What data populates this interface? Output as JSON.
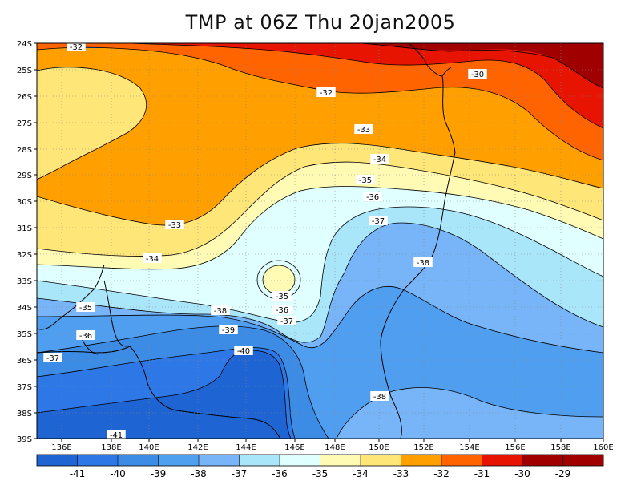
{
  "title": "TMP at 06Z Thu 20jan2005",
  "map": {
    "lon_labels": [
      "136E",
      "138E",
      "140E",
      "142E",
      "144E",
      "146E",
      "148E",
      "150E",
      "152E",
      "154E",
      "156E",
      "158E",
      "160E"
    ],
    "lat_labels": [
      "24S",
      "25S",
      "26S",
      "27S",
      "28S",
      "29S",
      "30S",
      "31S",
      "32S",
      "33S",
      "34S",
      "35S",
      "36S",
      "37S",
      "38S",
      "39S"
    ],
    "contour_labels": [
      "-32",
      "-30",
      "-32",
      "-33",
      "-34",
      "-35",
      "-36",
      "-37",
      "-38",
      "-33",
      "-34",
      "-35",
      "-36",
      "-37",
      "-35",
      "-36",
      "-37",
      "-38",
      "-39",
      "-40",
      "-38",
      "-41"
    ]
  },
  "colorbar": {
    "labels": [
      "-41",
      "-40",
      "-39",
      "-38",
      "-37",
      "-36",
      "-35",
      "-34",
      "-33",
      "-32",
      "-31",
      "-30",
      "-29"
    ],
    "colors": [
      "#1e64d2",
      "#2d78e6",
      "#3c8ce6",
      "#50a0f0",
      "#78b4f8",
      "#aae6fa",
      "#e0ffff",
      "#fffab4",
      "#ffe678",
      "#ffa000",
      "#ff6400",
      "#e61400",
      "#a00000",
      "#a00000"
    ]
  }
}
